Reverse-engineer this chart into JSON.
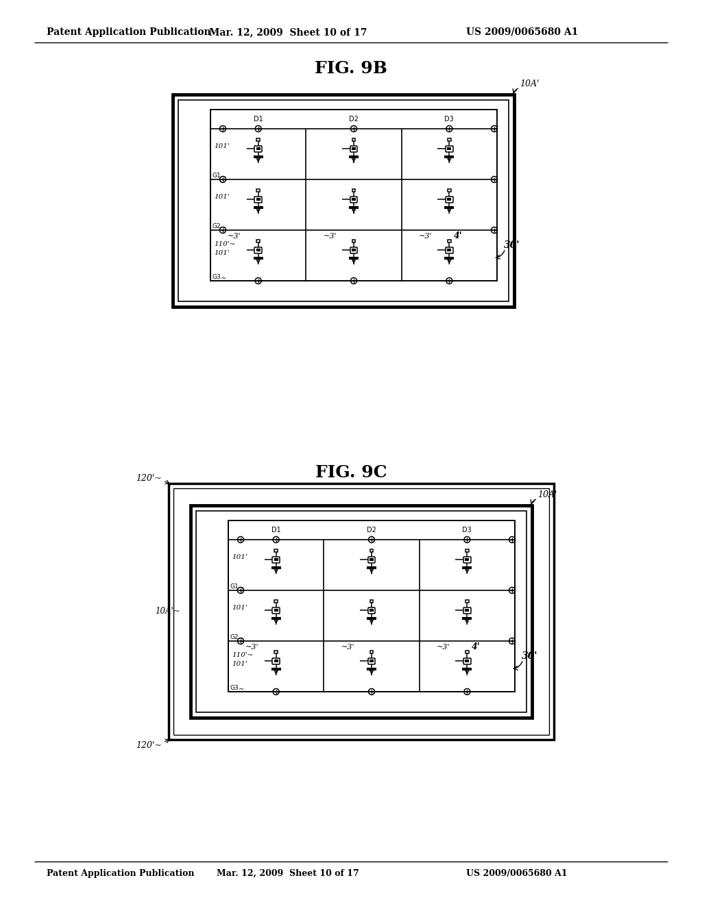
{
  "bg_color": "#ffffff",
  "header_left": "Patent Application Publication",
  "header_mid": "Mar. 12, 2009  Sheet 10 of 17",
  "header_right": "US 2009/0065680 A1",
  "fig9b_title": "FIG. 9B",
  "fig9c_title": "FIG. 9C"
}
